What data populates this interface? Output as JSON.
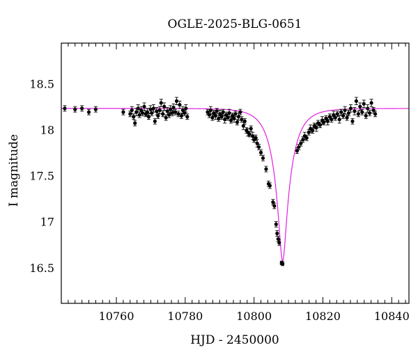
{
  "chart_data": {
    "type": "scatter",
    "title": "OGLE-2025-BLG-0651",
    "xlabel": "HJD - 2450000",
    "ylabel": "I magnitude",
    "xlim": [
      10744,
      10845
    ],
    "ylim": [
      18.95,
      16.12
    ],
    "y_inverted": true,
    "x_ticks": [
      10760,
      10780,
      10800,
      10820,
      10840
    ],
    "x_tick_labels": [
      "10760",
      "10780",
      "10800",
      "10820",
      "10840"
    ],
    "y_ticks": [
      16.5,
      17,
      17.5,
      18,
      18.5
    ],
    "y_tick_labels": [
      "16.5",
      "17",
      "17.5",
      "18",
      "18.5"
    ],
    "grid": false,
    "legend": "none",
    "series": [
      {
        "type": "scatter-errorbars",
        "color": "#000000",
        "points": [
          [
            10745.0,
            18.24,
            0.03
          ],
          [
            10748.0,
            18.23,
            0.03
          ],
          [
            10750.0,
            18.24,
            0.03
          ],
          [
            10752.0,
            18.2,
            0.03
          ],
          [
            10754.0,
            18.23,
            0.03
          ],
          [
            10762.0,
            18.2,
            0.03
          ],
          [
            10764.0,
            18.18,
            0.03
          ],
          [
            10764.5,
            18.22,
            0.04
          ],
          [
            10765.0,
            18.15,
            0.03
          ],
          [
            10765.4,
            18.08,
            0.03
          ],
          [
            10765.8,
            18.2,
            0.04
          ],
          [
            10766.3,
            18.24,
            0.04
          ],
          [
            10766.7,
            18.17,
            0.03
          ],
          [
            10767.2,
            18.22,
            0.04
          ],
          [
            10767.6,
            18.19,
            0.03
          ],
          [
            10768.1,
            18.26,
            0.04
          ],
          [
            10768.5,
            18.18,
            0.03
          ],
          [
            10769.0,
            18.2,
            0.04
          ],
          [
            10769.4,
            18.15,
            0.03
          ],
          [
            10769.9,
            18.23,
            0.04
          ],
          [
            10770.3,
            18.19,
            0.03
          ],
          [
            10770.8,
            18.24,
            0.04
          ],
          [
            10771.2,
            18.1,
            0.03
          ],
          [
            10771.7,
            18.21,
            0.04
          ],
          [
            10772.1,
            18.16,
            0.03
          ],
          [
            10772.6,
            18.22,
            0.04
          ],
          [
            10773.0,
            18.3,
            0.04
          ],
          [
            10773.5,
            18.18,
            0.03
          ],
          [
            10773.9,
            18.26,
            0.04
          ],
          [
            10774.4,
            18.14,
            0.03
          ],
          [
            10774.8,
            18.21,
            0.04
          ],
          [
            10775.3,
            18.17,
            0.03
          ],
          [
            10775.7,
            18.23,
            0.04
          ],
          [
            10776.2,
            18.19,
            0.03
          ],
          [
            10776.6,
            18.25,
            0.04
          ],
          [
            10777.1,
            18.2,
            0.03
          ],
          [
            10777.5,
            18.32,
            0.04
          ],
          [
            10778.0,
            18.18,
            0.03
          ],
          [
            10778.4,
            18.28,
            0.04
          ],
          [
            10778.9,
            18.16,
            0.03
          ],
          [
            10779.3,
            18.22,
            0.04
          ],
          [
            10779.8,
            18.19,
            0.03
          ],
          [
            10780.2,
            18.24,
            0.04
          ],
          [
            10780.6,
            18.15,
            0.03
          ],
          [
            10786.5,
            18.2,
            0.03
          ],
          [
            10787.0,
            18.17,
            0.03
          ],
          [
            10787.4,
            18.22,
            0.04
          ],
          [
            10787.9,
            18.14,
            0.03
          ],
          [
            10788.3,
            18.19,
            0.03
          ],
          [
            10788.8,
            18.16,
            0.04
          ],
          [
            10789.2,
            18.21,
            0.03
          ],
          [
            10789.7,
            18.13,
            0.03
          ],
          [
            10790.1,
            18.18,
            0.04
          ],
          [
            10790.6,
            18.15,
            0.03
          ],
          [
            10791.0,
            18.2,
            0.03
          ],
          [
            10791.5,
            18.12,
            0.04
          ],
          [
            10791.9,
            18.17,
            0.03
          ],
          [
            10792.4,
            18.14,
            0.03
          ],
          [
            10792.8,
            18.19,
            0.04
          ],
          [
            10793.3,
            18.11,
            0.03
          ],
          [
            10793.7,
            18.16,
            0.03
          ],
          [
            10794.2,
            18.13,
            0.04
          ],
          [
            10794.6,
            18.18,
            0.03
          ],
          [
            10795.1,
            18.09,
            0.03
          ],
          [
            10795.5,
            18.15,
            0.04
          ],
          [
            10796.0,
            18.2,
            0.03
          ],
          [
            10796.4,
            18.12,
            0.03
          ],
          [
            10796.9,
            18.05,
            0.04
          ],
          [
            10797.3,
            18.1,
            0.03
          ],
          [
            10797.8,
            18.0,
            0.03
          ],
          [
            10798.2,
            17.98,
            0.04
          ],
          [
            10798.7,
            17.96,
            0.03
          ],
          [
            10799.1,
            18.02,
            0.03
          ],
          [
            10799.6,
            17.94,
            0.04
          ],
          [
            10800.0,
            17.9,
            0.03
          ],
          [
            10800.5,
            17.92,
            0.03
          ],
          [
            10800.9,
            17.86,
            0.04
          ],
          [
            10801.4,
            17.82,
            0.03
          ],
          [
            10802.0,
            17.76,
            0.03
          ],
          [
            10802.6,
            17.7,
            0.03
          ],
          [
            10803.5,
            17.58,
            0.03
          ],
          [
            10804.2,
            17.42,
            0.03
          ],
          [
            10804.6,
            17.4,
            0.03
          ],
          [
            10805.5,
            17.22,
            0.03
          ],
          [
            10805.9,
            17.18,
            0.03
          ],
          [
            10806.4,
            16.98,
            0.03
          ],
          [
            10806.7,
            16.88,
            0.03
          ],
          [
            10807.0,
            16.82,
            0.03
          ],
          [
            10807.3,
            16.78,
            0.03
          ],
          [
            10808.0,
            16.56,
            0.02
          ],
          [
            10808.3,
            16.55,
            0.02
          ],
          [
            10812.5,
            17.78,
            0.03
          ],
          [
            10813.0,
            17.82,
            0.03
          ],
          [
            10813.6,
            17.86,
            0.03
          ],
          [
            10814.2,
            17.9,
            0.03
          ],
          [
            10814.7,
            17.94,
            0.04
          ],
          [
            10815.3,
            17.92,
            0.03
          ],
          [
            10815.9,
            17.98,
            0.03
          ],
          [
            10816.4,
            18.02,
            0.04
          ],
          [
            10817.0,
            18.0,
            0.03
          ],
          [
            10817.5,
            18.05,
            0.03
          ],
          [
            10818.1,
            18.03,
            0.04
          ],
          [
            10818.6,
            18.08,
            0.03
          ],
          [
            10819.2,
            18.06,
            0.03
          ],
          [
            10819.8,
            18.11,
            0.04
          ],
          [
            10820.3,
            18.09,
            0.03
          ],
          [
            10820.9,
            18.13,
            0.03
          ],
          [
            10821.4,
            18.1,
            0.04
          ],
          [
            10822.0,
            18.15,
            0.03
          ],
          [
            10822.5,
            18.12,
            0.03
          ],
          [
            10823.1,
            18.17,
            0.04
          ],
          [
            10823.6,
            18.14,
            0.03
          ],
          [
            10824.2,
            18.18,
            0.03
          ],
          [
            10824.8,
            18.12,
            0.04
          ],
          [
            10825.3,
            18.2,
            0.03
          ],
          [
            10825.9,
            18.16,
            0.03
          ],
          [
            10826.4,
            18.22,
            0.04
          ],
          [
            10827.0,
            18.14,
            0.03
          ],
          [
            10827.5,
            18.19,
            0.03
          ],
          [
            10828.1,
            18.24,
            0.04
          ],
          [
            10828.6,
            18.1,
            0.03
          ],
          [
            10829.2,
            18.21,
            0.04
          ],
          [
            10829.7,
            18.32,
            0.04
          ],
          [
            10830.3,
            18.18,
            0.03
          ],
          [
            10830.8,
            18.26,
            0.04
          ],
          [
            10831.4,
            18.2,
            0.03
          ],
          [
            10831.9,
            18.29,
            0.04
          ],
          [
            10832.5,
            18.16,
            0.03
          ],
          [
            10833.0,
            18.24,
            0.04
          ],
          [
            10833.6,
            18.19,
            0.03
          ],
          [
            10834.1,
            18.3,
            0.04
          ],
          [
            10834.7,
            18.22,
            0.03
          ],
          [
            10835.2,
            18.18,
            0.03
          ]
        ]
      },
      {
        "type": "model-line",
        "color": "#e020e0",
        "model": {
          "t0": 10808.3,
          "tE": 5.3,
          "u0": 0.18,
          "m_base": 18.24,
          "fs": 0.78
        }
      }
    ]
  }
}
